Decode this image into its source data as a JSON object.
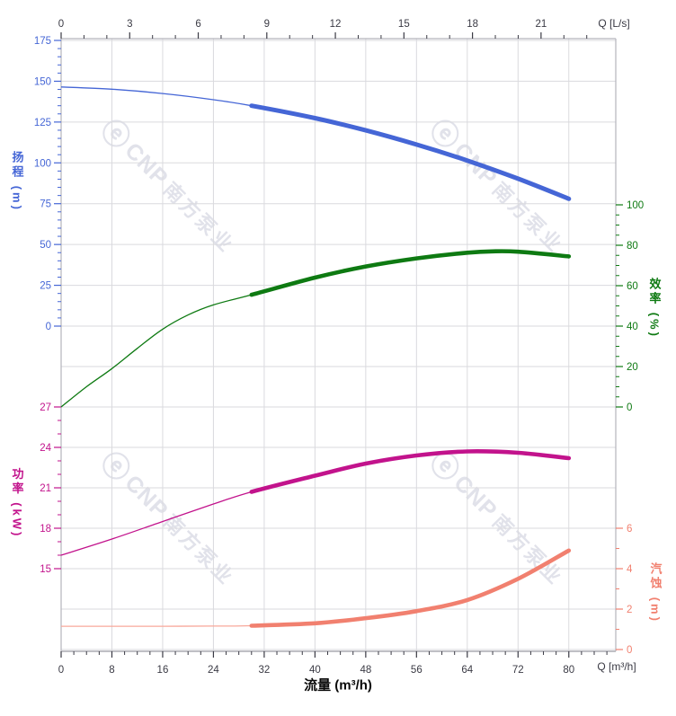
{
  "watermark": {
    "logo_glyph": "ⓔ",
    "brand": "CNP",
    "brand_cn": "南方泵业"
  },
  "colors": {
    "head": "#4566d6",
    "efficiency": "#0e7a12",
    "power": "#c2138c",
    "npsh": "#f1806f",
    "npsh_thin": "#f8a89b",
    "axis_text": "#3a3a44",
    "grid": "#dadade",
    "frame": "#b4b4bc",
    "watermark": "#e1e2ea"
  },
  "chart_data": {
    "type": "line",
    "x_top": {
      "unit_label": "Q [L/s]",
      "majors": [
        0,
        3,
        6,
        9,
        12,
        15,
        18,
        21
      ],
      "minor_step": 1,
      "minor_max": 23,
      "range": [
        0,
        24.27
      ]
    },
    "x_bottom": {
      "title": "流量 (m³/h)",
      "unit_label": "Q [m³/h]",
      "majors": [
        0,
        8,
        16,
        24,
        32,
        40,
        48,
        56,
        64,
        72,
        80
      ],
      "minor_step": 2,
      "minor_max": 86,
      "range": [
        0,
        87.4
      ]
    },
    "y_axes": [
      {
        "id": "head",
        "side": "left",
        "label": "扬程 (m)",
        "majors": [
          175,
          150,
          125,
          100,
          75,
          50,
          25,
          0
        ],
        "minor_step": 5,
        "range": [
          0,
          175
        ]
      },
      {
        "id": "efficiency",
        "side": "right",
        "label": "效率 (%)",
        "majors": [
          100,
          80,
          60,
          40,
          20,
          0
        ],
        "minor_step": 5,
        "range": [
          0,
          100
        ]
      },
      {
        "id": "power",
        "side": "left",
        "label": "功率 (kW)",
        "majors": [
          27,
          24,
          21,
          18,
          15
        ],
        "minor_step": 1,
        "range": [
          15,
          27
        ]
      },
      {
        "id": "npsh",
        "side": "right",
        "label": "汽蚀 (m)",
        "majors": [
          6,
          4,
          2,
          0
        ],
        "minor_step": 1,
        "range": [
          0,
          6
        ]
      }
    ],
    "series": [
      {
        "id": "head",
        "name": "扬程",
        "band": "head",
        "bold_from": 30,
        "points": [
          [
            0,
            146.5
          ],
          [
            8,
            145.1
          ],
          [
            16,
            142.5
          ],
          [
            24,
            138.7
          ],
          [
            30,
            135.0
          ],
          [
            40,
            127.4
          ],
          [
            48,
            119.9
          ],
          [
            56,
            111.2
          ],
          [
            64,
            101.4
          ],
          [
            72,
            90.3
          ],
          [
            80,
            78.0
          ]
        ]
      },
      {
        "id": "efficiency",
        "name": "效率",
        "band": "efficiency",
        "bold_from": 30,
        "points": [
          [
            0,
            0
          ],
          [
            4,
            10
          ],
          [
            8,
            19
          ],
          [
            12,
            29
          ],
          [
            16,
            38.5
          ],
          [
            20,
            45.5
          ],
          [
            24,
            50.5
          ],
          [
            30,
            55.5
          ],
          [
            40,
            64
          ],
          [
            48,
            69.5
          ],
          [
            56,
            73.5
          ],
          [
            64,
            76.3
          ],
          [
            68,
            77
          ],
          [
            72,
            76.8
          ],
          [
            80,
            74.5
          ]
        ]
      },
      {
        "id": "power",
        "name": "功率",
        "band": "power",
        "bold_from": 30,
        "points": [
          [
            0,
            16.0
          ],
          [
            8,
            17.2
          ],
          [
            16,
            18.5
          ],
          [
            24,
            19.8
          ],
          [
            30,
            20.7
          ],
          [
            40,
            21.9
          ],
          [
            48,
            22.8
          ],
          [
            56,
            23.4
          ],
          [
            64,
            23.7
          ],
          [
            72,
            23.6
          ],
          [
            80,
            23.2
          ]
        ]
      },
      {
        "id": "npsh",
        "name": "汽蚀",
        "band": "npsh",
        "bold_from": 30,
        "points": [
          [
            0,
            1.15
          ],
          [
            8,
            1.15
          ],
          [
            16,
            1.15
          ],
          [
            24,
            1.16
          ],
          [
            30,
            1.18
          ],
          [
            40,
            1.3
          ],
          [
            48,
            1.55
          ],
          [
            56,
            1.9
          ],
          [
            64,
            2.45
          ],
          [
            72,
            3.5
          ],
          [
            80,
            4.9
          ]
        ]
      }
    ]
  }
}
